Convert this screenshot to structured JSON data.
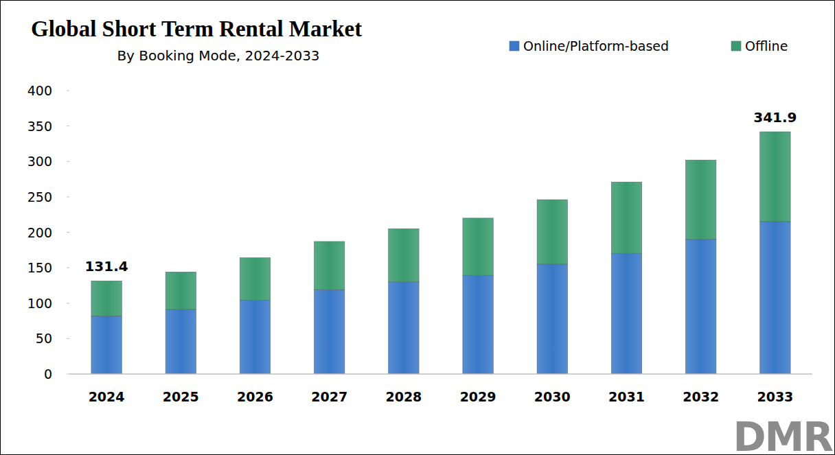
{
  "chart_data": {
    "type": "bar",
    "title": "Global Short Term Rental Market",
    "subtitle": "By Booking Mode, 2024-2033",
    "categories": [
      "2024",
      "2025",
      "2026",
      "2027",
      "2028",
      "2029",
      "2030",
      "2031",
      "2032",
      "2033"
    ],
    "series": [
      {
        "name": "Online/Platform-based",
        "color": "#3a78c8",
        "values": [
          82,
          91,
          104,
          119,
          130,
          139,
          155,
          170,
          190,
          215
        ]
      },
      {
        "name": "Offline",
        "color": "#3a9b6e",
        "values": [
          49.4,
          53,
          60,
          68,
          75,
          81,
          91,
          101,
          112,
          126.9
        ]
      }
    ],
    "totals": [
      131.4,
      null,
      null,
      null,
      null,
      null,
      null,
      null,
      null,
      341.9
    ],
    "ylim": [
      0,
      400
    ],
    "yticks": [
      0,
      50,
      100,
      150,
      200,
      250,
      300,
      350,
      400
    ],
    "stacked": true,
    "grid": false,
    "legend": "top-right",
    "logo": "DMR"
  }
}
